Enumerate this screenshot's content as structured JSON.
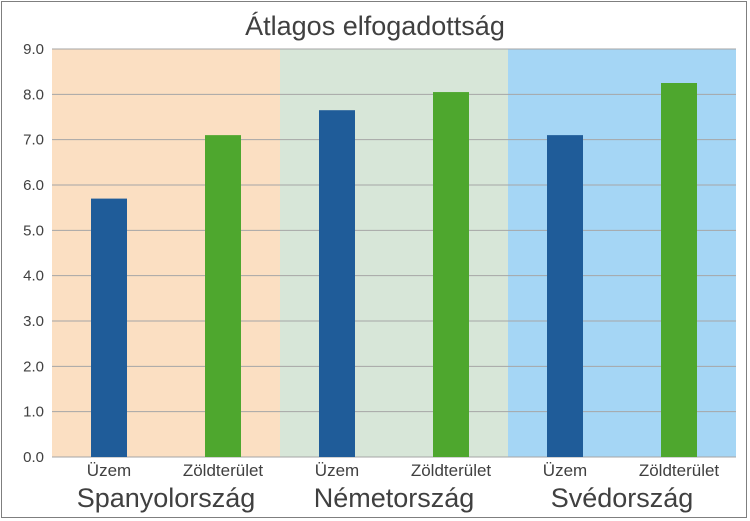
{
  "chart_data": {
    "type": "bar",
    "title": "Átlagos elfogadottság",
    "xlabel": "",
    "ylabel": "",
    "ylim": [
      0,
      9
    ],
    "yticks": [
      "0.0",
      "1.0",
      "2.0",
      "3.0",
      "4.0",
      "5.0",
      "6.0",
      "7.0",
      "8.0",
      "9.0"
    ],
    "grid": true,
    "legend": "none",
    "groups": [
      {
        "name": "Spanyolország",
        "band_color": "#fbdfc2",
        "bars": [
          {
            "category": "Üzem",
            "value": 5.7,
            "color": "#1f5c99"
          },
          {
            "category": "Zöldterület",
            "value": 7.1,
            "color": "#4ea72e"
          }
        ]
      },
      {
        "name": "Németország",
        "band_color": "#d7e6d8",
        "bars": [
          {
            "category": "Üzem",
            "value": 7.65,
            "color": "#1f5c99"
          },
          {
            "category": "Zöldterület",
            "value": 8.05,
            "color": "#4ea72e"
          }
        ]
      },
      {
        "name": "Svédország",
        "band_color": "#a5d6f5",
        "bars": [
          {
            "category": "Üzem",
            "value": 7.1,
            "color": "#1f5c99"
          },
          {
            "category": "Zöldterület",
            "value": 8.25,
            "color": "#4ea72e"
          }
        ]
      }
    ]
  }
}
